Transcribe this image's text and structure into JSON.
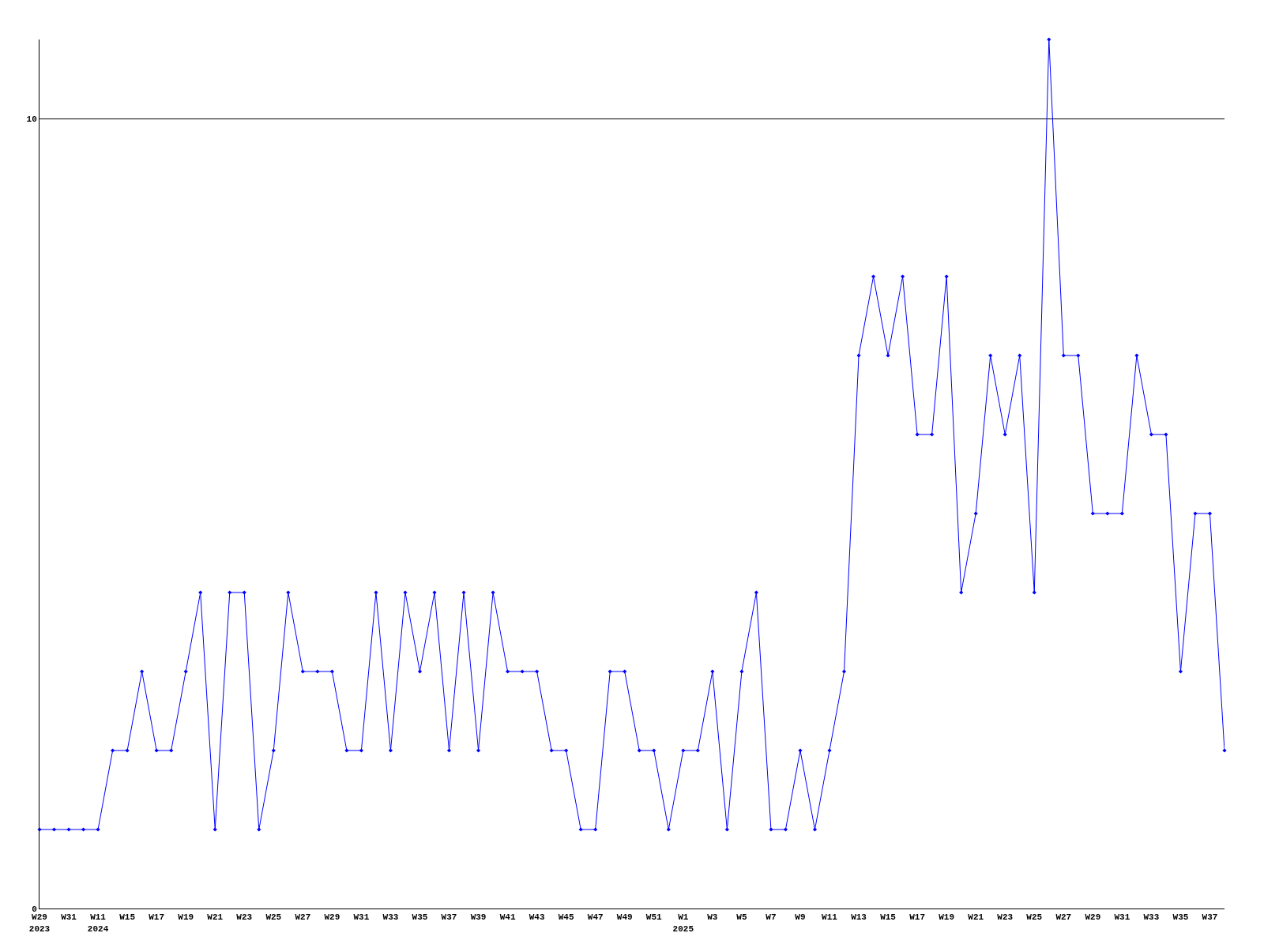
{
  "chart_data": {
    "type": "line",
    "categories": [
      "W29\n2023",
      null,
      "W31",
      null,
      "W11\n2024",
      null,
      "W15",
      null,
      "W17",
      null,
      "W19",
      null,
      "W21",
      null,
      "W23",
      null,
      "W25",
      null,
      "W27",
      null,
      "W29",
      null,
      "W31",
      null,
      "W33",
      null,
      "W35",
      null,
      "W37",
      null,
      "W39",
      null,
      "W41",
      null,
      "W43",
      null,
      "W45",
      null,
      "W47",
      null,
      "W49",
      null,
      "W51",
      null,
      "W1\n2025",
      null,
      "W3",
      null,
      "W5",
      null,
      "W7",
      null,
      "W9",
      null,
      "W11",
      null,
      "W13",
      null,
      "W15",
      null,
      "W17",
      null,
      "W19",
      null,
      "W21",
      null,
      "W23",
      null,
      "W25",
      null,
      "W27",
      null,
      "W29",
      null,
      "W31",
      null,
      "W33",
      null,
      "W35",
      null,
      "W37",
      null
    ],
    "series": [
      {
        "color": "#0000ff",
        "values": [
          1,
          1,
          1,
          1,
          1,
          2,
          2,
          3,
          2,
          2,
          3,
          4,
          1,
          4,
          4,
          1,
          2,
          4,
          3,
          3,
          3,
          2,
          2,
          4,
          2,
          4,
          3,
          4,
          2,
          4,
          2,
          4,
          3,
          3,
          3,
          2,
          2,
          1,
          1,
          3,
          3,
          2,
          2,
          1,
          2,
          2,
          3,
          1,
          3,
          4,
          1,
          1,
          2,
          1,
          2,
          3,
          7,
          8,
          7,
          8,
          6,
          6,
          8,
          4,
          5,
          7,
          6,
          7,
          4,
          11,
          7,
          7,
          5,
          5,
          5,
          7,
          6,
          6,
          3,
          5,
          5,
          2
        ]
      }
    ],
    "ylim": [
      0,
      11
    ],
    "yticks": [
      0,
      10
    ],
    "grid": "y",
    "marker": "diamond",
    "line_style": "solid",
    "legend": false
  }
}
